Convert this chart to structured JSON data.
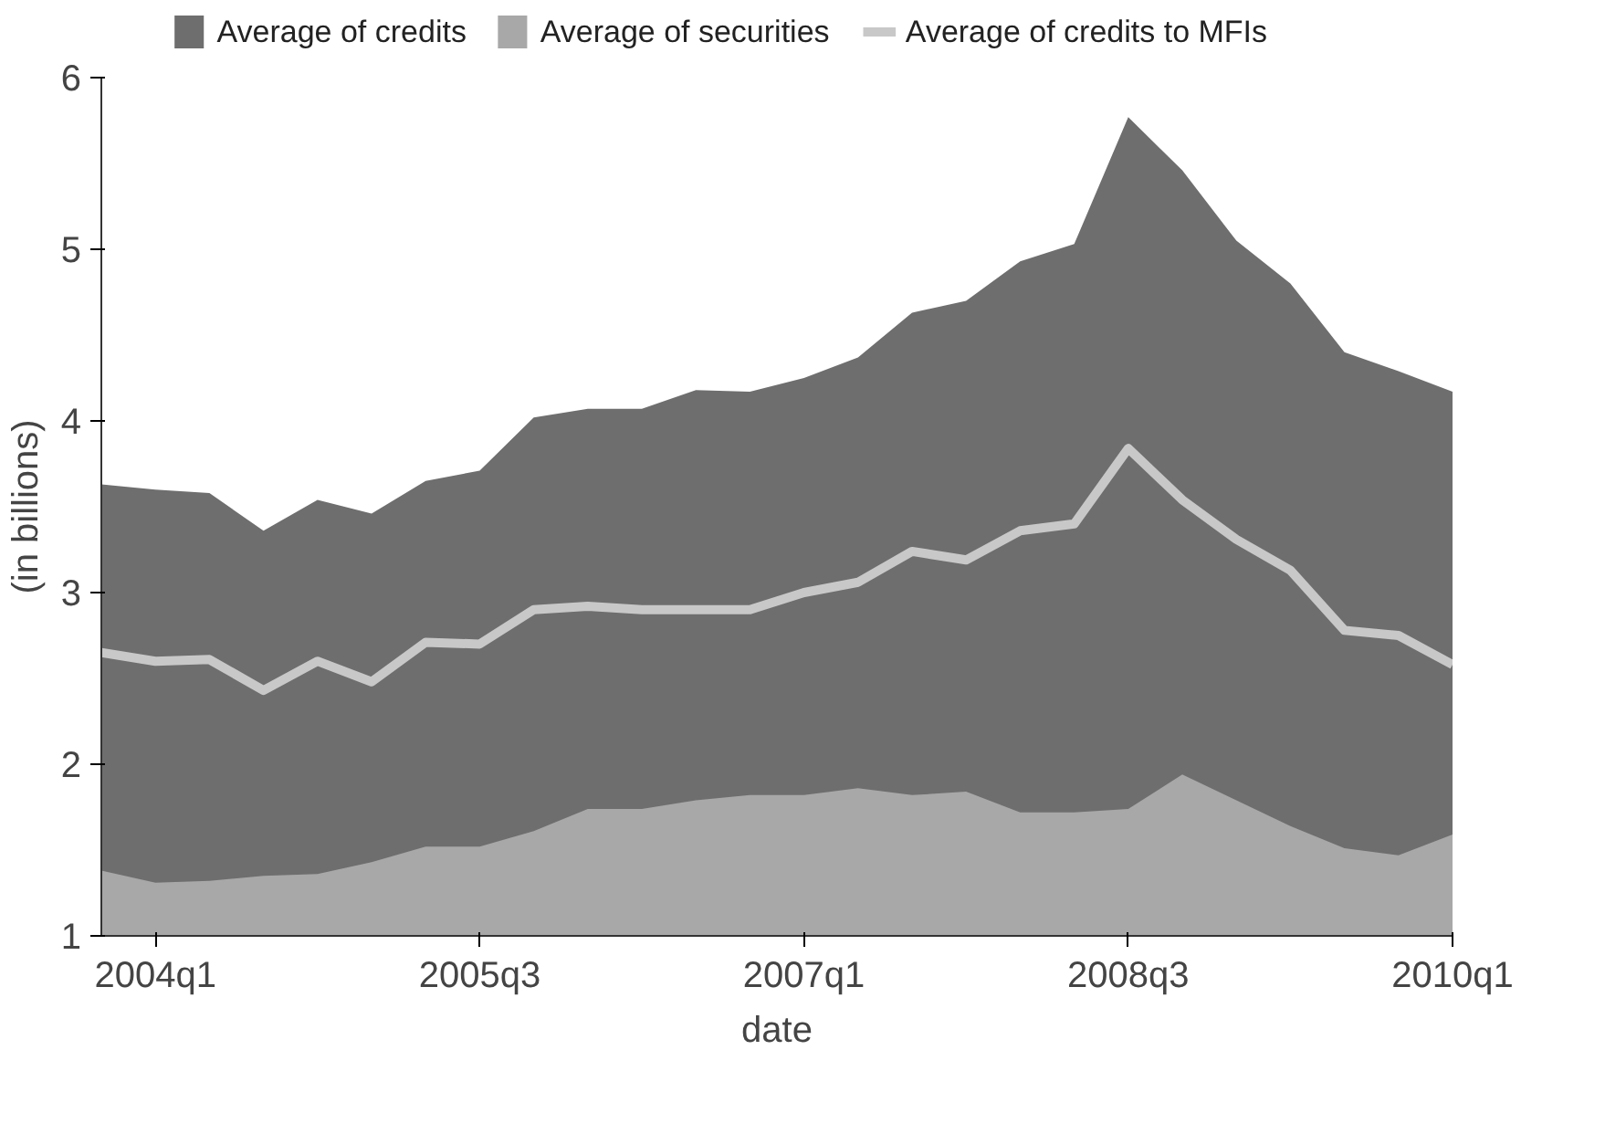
{
  "chart_data": {
    "type": "area",
    "xlabel": "date",
    "ylabel": "(in billions)",
    "categories": [
      null,
      "2004q1",
      null,
      null,
      null,
      null,
      null,
      "2005q3",
      null,
      null,
      null,
      null,
      null,
      "2007q1",
      null,
      null,
      null,
      null,
      null,
      "2008q3",
      null,
      null,
      null,
      null,
      null,
      "2010q1"
    ],
    "series": [
      {
        "name": "Average of credits",
        "color": "#6e6e6e",
        "values": [
          3.63,
          3.6,
          3.58,
          3.36,
          3.54,
          3.46,
          3.65,
          3.71,
          4.02,
          4.07,
          4.07,
          4.18,
          4.17,
          4.25,
          4.37,
          4.63,
          4.7,
          4.93,
          5.03,
          5.77,
          5.46,
          5.05,
          4.8,
          4.4,
          4.29,
          4.17
        ]
      },
      {
        "name": "Average of securities",
        "color": "#a8a8a8",
        "values": [
          1.38,
          1.31,
          1.32,
          1.35,
          1.36,
          1.43,
          1.52,
          1.52,
          1.61,
          1.74,
          1.74,
          1.79,
          1.82,
          1.82,
          1.86,
          1.82,
          1.84,
          1.72,
          1.72,
          1.74,
          1.94,
          1.79,
          1.64,
          1.51,
          1.47,
          1.59
        ]
      },
      {
        "name": "Average of credits to MFIs",
        "type": "line",
        "color": "#c8c8c8",
        "values": [
          2.65,
          2.6,
          2.61,
          2.43,
          2.6,
          2.48,
          2.71,
          2.7,
          2.9,
          2.92,
          2.9,
          2.9,
          2.9,
          3.0,
          3.06,
          3.24,
          3.19,
          3.36,
          3.4,
          3.84,
          3.54,
          3.31,
          3.13,
          2.78,
          2.75,
          2.58
        ]
      }
    ],
    "ylim": [
      1,
      6
    ],
    "yticks": [
      1,
      2,
      3,
      4,
      5,
      6
    ],
    "grid": false,
    "legend": "top"
  }
}
